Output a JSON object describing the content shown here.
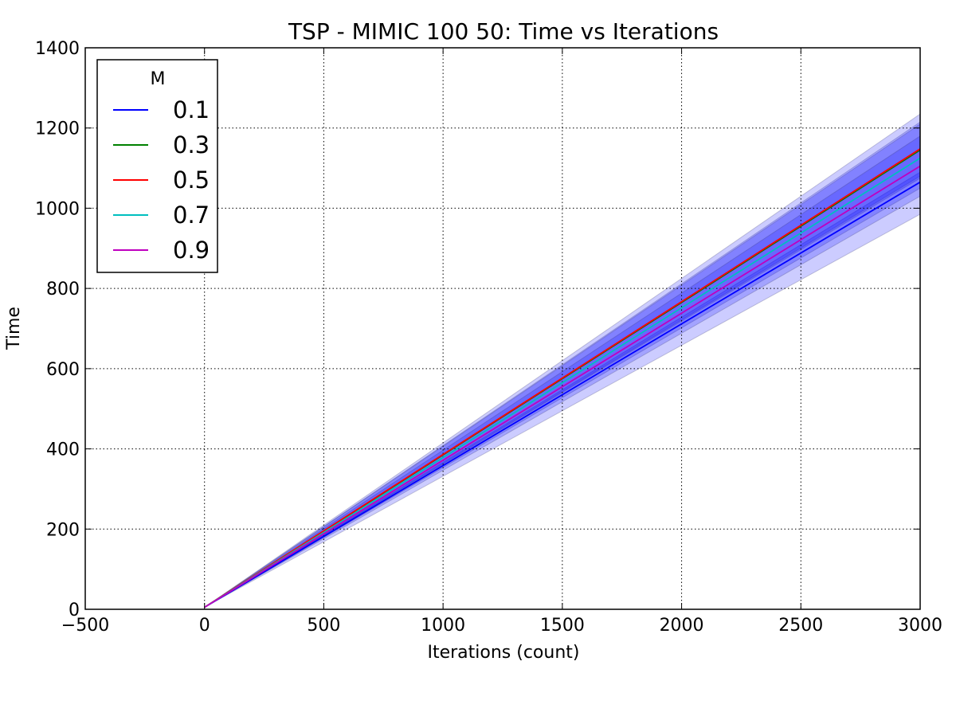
{
  "chart_data": {
    "type": "line",
    "title": "TSP - MIMIC 100 50: Time vs Iterations",
    "xlabel": "Iterations (count)",
    "ylabel": "Time",
    "xlim": [
      -500,
      3000
    ],
    "ylim": [
      0,
      1400
    ],
    "xticks": [
      -500,
      0,
      500,
      1000,
      1500,
      2000,
      2500,
      3000
    ],
    "xtick_labels": [
      "−500",
      "0",
      "500",
      "1000",
      "1500",
      "2000",
      "2500",
      "3000"
    ],
    "yticks": [
      0,
      200,
      400,
      600,
      800,
      1000,
      1200,
      1400
    ],
    "ytick_labels": [
      "0",
      "200",
      "400",
      "600",
      "800",
      "1000",
      "1200",
      "1400"
    ],
    "grid": true,
    "legend": {
      "title": "M",
      "placement": "top-left"
    },
    "x": [
      0,
      3000
    ],
    "series": [
      {
        "name": "0.1",
        "color": "#0000ff",
        "values": [
          5,
          1065
        ],
        "band": [
          [
            5,
            5
          ],
          [
            985,
            1090
          ]
        ]
      },
      {
        "name": "0.3",
        "color": "#008000",
        "values": [
          5,
          1145
        ],
        "band": [
          [
            5,
            5
          ],
          [
            1080,
            1215
          ]
        ]
      },
      {
        "name": "0.5",
        "color": "#ff0000",
        "values": [
          5,
          1148
        ],
        "band": [
          [
            5,
            5
          ],
          [
            1075,
            1235
          ]
        ]
      },
      {
        "name": "0.7",
        "color": "#00bfbf",
        "values": [
          5,
          1125
        ],
        "band": [
          [
            5,
            5
          ],
          [
            1050,
            1210
          ]
        ]
      },
      {
        "name": "0.9",
        "color": "#bf00bf",
        "values": [
          5,
          1105
        ],
        "band": [
          [
            5,
            5
          ],
          [
            1030,
            1180
          ]
        ]
      }
    ],
    "band_color": "#0000ff"
  }
}
